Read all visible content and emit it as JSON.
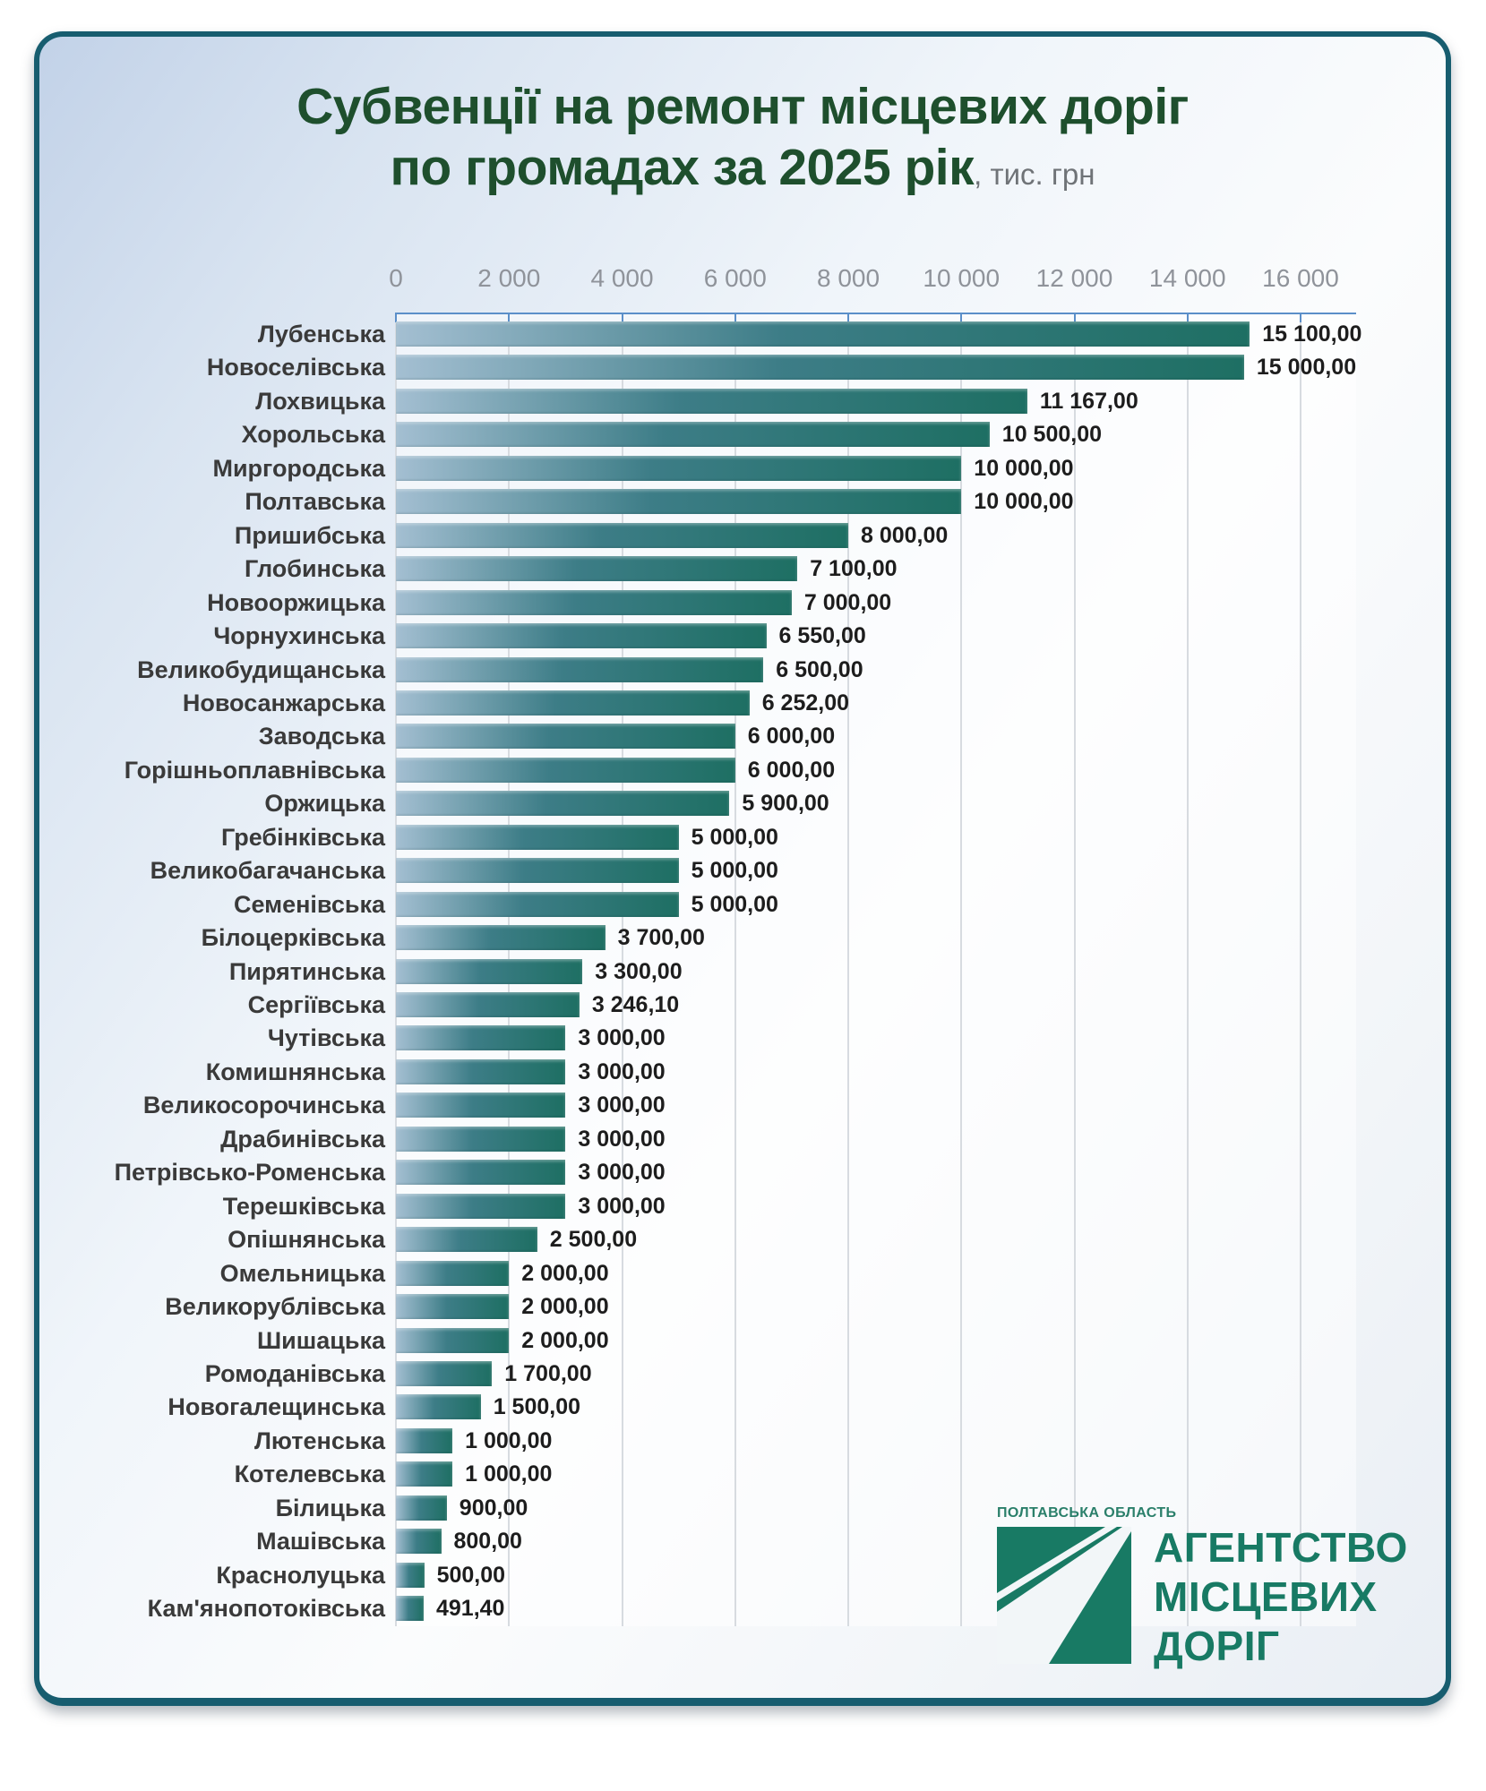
{
  "title": {
    "line1": "Субвенції на ремонт місцевих доріг",
    "line2": "по громадах за 2025 рік",
    "unit": ", тис. грн"
  },
  "logo": {
    "region": "ПОЛТАВСЬКА ОБЛАСТЬ",
    "name_lines": [
      "АГЕНТСТВО",
      "МІСЦЕВИХ",
      "ДОРІГ"
    ],
    "road_icon": "road-perspective-icon"
  },
  "colors": {
    "card_border": "#175d6f",
    "title_green": "#1e4f2d",
    "axis_blue": "#5b8fc9",
    "gridline": "#d7dbe0",
    "bar_gradient": [
      "#a4bfd2",
      "#3d7d87",
      "#1e6f63"
    ],
    "logo_green": "#187a64",
    "category_label": "#3a3a3a",
    "value_label": "#1d1d1d",
    "tick_label": "#8f939a"
  },
  "chart_data": {
    "type": "bar",
    "orientation": "horizontal",
    "title": "Субвенції на ремонт місцевих доріг по громадах за 2025 рік",
    "unit": "тис. грн",
    "xlim": [
      0,
      16000
    ],
    "grid": true,
    "x_ticks": [
      0,
      2000,
      4000,
      6000,
      8000,
      10000,
      12000,
      14000,
      16000
    ],
    "x_tick_labels": [
      "0",
      "2 000",
      "4 000",
      "6 000",
      "8 000",
      "10 000",
      "12 000",
      "14 000",
      "16 000"
    ],
    "categories": [
      "Лубенська",
      "Новоселівська",
      "Лохвицька",
      "Хорольська",
      "Миргородська",
      "Полтавська",
      "Пришибська",
      "Глобинська",
      "Новооржицька",
      "Чорнухинська",
      "Великобудищанська",
      "Новосанжарська",
      "Заводська",
      "Горішньоплавнівська",
      "Оржицька",
      "Гребінківська",
      "Великобагачанська",
      "Семенівська",
      "Білоцерківська",
      "Пирятинська",
      "Сергіївська",
      "Чутівська",
      "Комишнянська",
      "Великосорочинська",
      "Драбинівська",
      "Петрівсько-Роменська",
      "Терешківська",
      "Опішнянська",
      "Омельницька",
      "Великорублівська",
      "Шишацька",
      "Ромоданівська",
      "Новогалещинська",
      "Лютенська",
      "Котелевська",
      "Білицька",
      "Машівська",
      "Краснолуцька",
      "Кам'янопотоківська"
    ],
    "values": [
      15100,
      15000,
      11167,
      10500,
      10000,
      10000,
      8000,
      7100,
      7000,
      6550,
      6500,
      6252,
      6000,
      6000,
      5900,
      5000,
      5000,
      5000,
      3700,
      3300,
      3246.1,
      3000,
      3000,
      3000,
      3000,
      3000,
      3000,
      2500,
      2000,
      2000,
      2000,
      1700,
      1500,
      1000,
      1000,
      900,
      800,
      500,
      491.4
    ],
    "value_labels": [
      "15 100,00",
      "15 000,00",
      "11 167,00",
      "10 500,00",
      "10 000,00",
      "10 000,00",
      "8 000,00",
      "7 100,00",
      "7 000,00",
      "6 550,00",
      "6 500,00",
      "6 252,00",
      "6 000,00",
      "6 000,00",
      "5 900,00",
      "5 000,00",
      "5 000,00",
      "5 000,00",
      "3 700,00",
      "3 300,00",
      "3 246,10",
      "3 000,00",
      "3 000,00",
      "3 000,00",
      "3 000,00",
      "3 000,00",
      "3 000,00",
      "2 500,00",
      "2 000,00",
      "2 000,00",
      "2 000,00",
      "1 700,00",
      "1 500,00",
      "1 000,00",
      "1 000,00",
      "900,00",
      "800,00",
      "500,00",
      "491,40"
    ]
  }
}
